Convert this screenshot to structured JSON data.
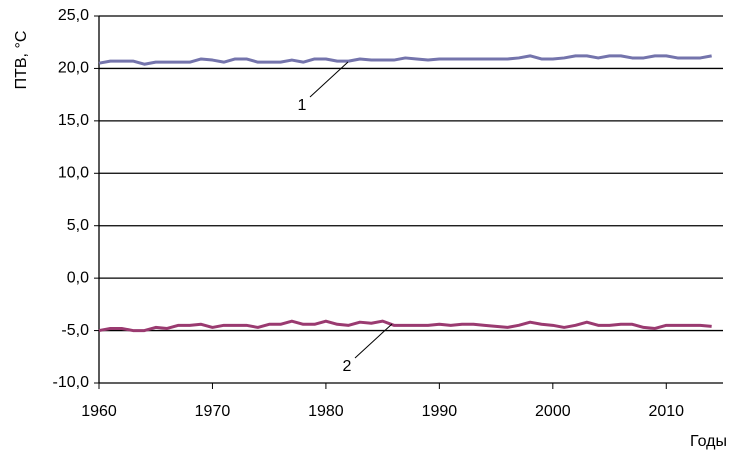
{
  "chart_data": {
    "type": "line",
    "y_label": "ПТВ, °C",
    "x_label": "Годы",
    "x": [
      1960,
      1961,
      1962,
      1963,
      1964,
      1965,
      1966,
      1967,
      1968,
      1969,
      1970,
      1971,
      1972,
      1973,
      1974,
      1975,
      1976,
      1977,
      1978,
      1979,
      1980,
      1981,
      1982,
      1983,
      1984,
      1985,
      1986,
      1987,
      1988,
      1989,
      1990,
      1991,
      1992,
      1993,
      1994,
      1995,
      1996,
      1997,
      1998,
      1999,
      2000,
      2001,
      2002,
      2003,
      2004,
      2005,
      2006,
      2007,
      2008,
      2009,
      2010,
      2011,
      2012,
      2013,
      2014
    ],
    "series": [
      {
        "name": "1",
        "color": "#7474ac",
        "values": [
          20.5,
          20.7,
          20.7,
          20.7,
          20.4,
          20.6,
          20.6,
          20.6,
          20.6,
          20.9,
          20.8,
          20.6,
          20.9,
          20.9,
          20.6,
          20.6,
          20.6,
          20.8,
          20.6,
          20.9,
          20.9,
          20.7,
          20.7,
          20.9,
          20.8,
          20.8,
          20.8,
          21.0,
          20.9,
          20.8,
          20.9,
          20.9,
          20.9,
          20.9,
          20.9,
          20.9,
          20.9,
          21.0,
          21.2,
          20.9,
          20.9,
          21.0,
          21.2,
          21.2,
          21.0,
          21.2,
          21.2,
          21.0,
          21.0,
          21.2,
          21.2,
          21.0,
          21.0,
          21.0,
          21.2
        ]
      },
      {
        "name": "2",
        "color": "#9a3a70",
        "values": [
          -5.0,
          -4.8,
          -4.8,
          -5.0,
          -5.0,
          -4.7,
          -4.8,
          -4.5,
          -4.5,
          -4.4,
          -4.7,
          -4.5,
          -4.5,
          -4.5,
          -4.7,
          -4.4,
          -4.4,
          -4.1,
          -4.4,
          -4.4,
          -4.1,
          -4.4,
          -4.5,
          -4.2,
          -4.3,
          -4.1,
          -4.5,
          -4.5,
          -4.5,
          -4.5,
          -4.4,
          -4.5,
          -4.4,
          -4.4,
          -4.5,
          -4.6,
          -4.7,
          -4.5,
          -4.2,
          -4.4,
          -4.5,
          -4.7,
          -4.5,
          -4.2,
          -4.5,
          -4.5,
          -4.4,
          -4.4,
          -4.7,
          -4.8,
          -4.5,
          -4.5,
          -4.5,
          -4.5,
          -4.6
        ]
      }
    ],
    "xlim": [
      1960,
      2015
    ],
    "xticks": [
      1960,
      1970,
      1980,
      1990,
      2000,
      2010
    ],
    "ylim": [
      -10,
      25
    ],
    "yticks": [
      {
        "value": -10,
        "label": "-10,0"
      },
      {
        "value": -5,
        "label": "-5,0"
      },
      {
        "value": 0,
        "label": "0,0"
      },
      {
        "value": 5,
        "label": "5,0"
      },
      {
        "value": 10,
        "label": "10,0"
      },
      {
        "value": 15,
        "label": "15,0"
      },
      {
        "value": 20,
        "label": "20,0"
      },
      {
        "value": 25,
        "label": "25,0"
      }
    ],
    "grid": true
  }
}
